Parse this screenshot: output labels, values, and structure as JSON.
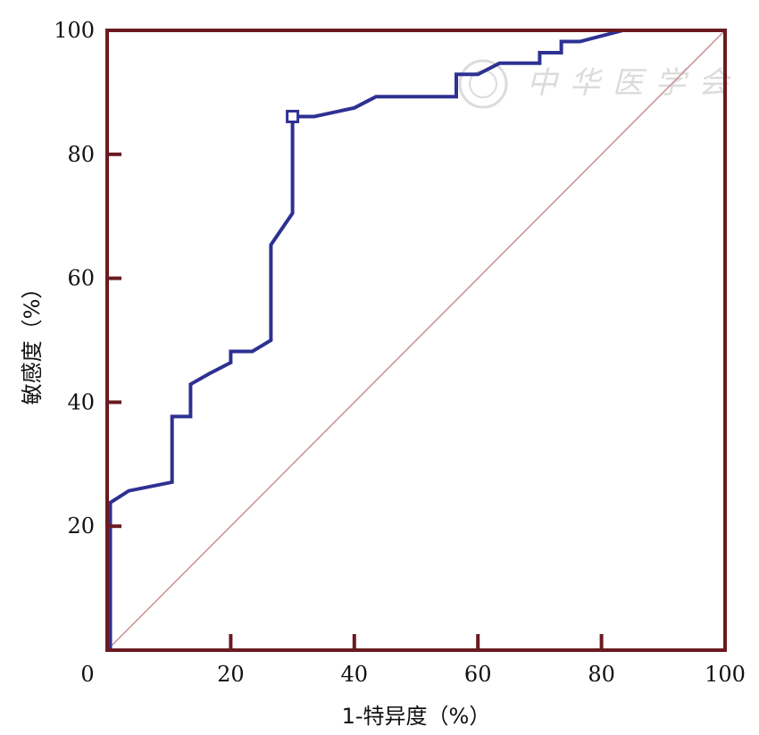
{
  "chart_data": {
    "type": "line",
    "xlabel": "1-特异度（%）",
    "ylabel": "敏感度（%）",
    "xlim": [
      0,
      100
    ],
    "ylim": [
      0,
      100
    ],
    "x_ticks": [
      0,
      20,
      40,
      60,
      80,
      100
    ],
    "y_ticks": [
      20,
      40,
      60,
      80,
      100
    ],
    "grid": false,
    "series": [
      {
        "name": "",
        "color": "#2e3192",
        "x": [
          0.5,
          0.5,
          3.5,
          10.5,
          10.5,
          13.5,
          13.5,
          16.5,
          20.0,
          20.0,
          23.5,
          26.5,
          26.5,
          30.0,
          30.0,
          33.5,
          40.0,
          43.5,
          56.5,
          56.5,
          60.0,
          63.5,
          70.0,
          70.0,
          73.5,
          73.5,
          76.5,
          83.5,
          100.0
        ],
        "y": [
          0,
          23.8,
          25.7,
          27.1,
          37.7,
          37.7,
          42.9,
          44.6,
          46.4,
          48.2,
          48.2,
          50.0,
          65.4,
          70.5,
          86.1,
          86.1,
          87.5,
          89.3,
          89.3,
          92.9,
          92.9,
          94.7,
          94.7,
          96.4,
          96.4,
          98.2,
          98.2,
          100.0,
          100.0
        ]
      },
      {
        "name": "",
        "color": "#c99090",
        "x": [
          0,
          100
        ],
        "y": [
          0,
          100
        ]
      }
    ],
    "marker": {
      "x": 30.0,
      "y": 86.1,
      "shape": "square"
    },
    "watermark": "中华医学会"
  }
}
